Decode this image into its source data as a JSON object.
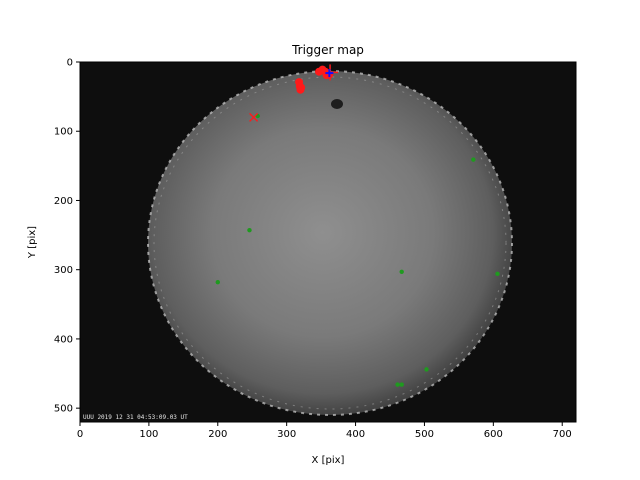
{
  "chart_data": {
    "type": "scatter",
    "title": "Trigger map",
    "xlabel": "X [pix]",
    "ylabel": "Y [pix]",
    "xlim": [
      0,
      720
    ],
    "ylim": [
      0,
      520
    ],
    "y_inverted": true,
    "xticks": [
      0,
      100,
      200,
      300,
      400,
      500,
      600,
      700
    ],
    "yticks": [
      0,
      100,
      200,
      300,
      400,
      500
    ],
    "background": "all-sky camera frame (fisheye)",
    "timestamp_overlay": "UUU 2019 12 31 04:53:09.03 UT",
    "colors": {
      "green": "#1f9a1f",
      "red": "#ff1a1a",
      "blue": "#1010ff"
    },
    "series": [
      {
        "marker": "circle",
        "color": "green",
        "points": [
          [
            258,
            78
          ],
          [
            571,
            141
          ],
          [
            246,
            243
          ],
          [
            467,
            303
          ],
          [
            200,
            318
          ],
          [
            606,
            306
          ],
          [
            503,
            444
          ],
          [
            461,
            466
          ],
          [
            467,
            466
          ]
        ]
      },
      {
        "marker": "circle",
        "color": "red",
        "points": [
          [
            318,
            29
          ],
          [
            319,
            35
          ],
          [
            320,
            40
          ],
          [
            321,
            37
          ],
          [
            347,
            14
          ],
          [
            352,
            11
          ],
          [
            356,
            14
          ],
          [
            358,
            19
          ],
          [
            362,
            18
          ]
        ]
      },
      {
        "marker": "x",
        "color": "red",
        "points": [
          [
            252,
            80
          ]
        ]
      },
      {
        "marker": "plus",
        "color": "red",
        "points": [
          [
            363,
            15
          ]
        ]
      },
      {
        "marker": "plus",
        "color": "blue",
        "points": [
          [
            362,
            16
          ]
        ]
      }
    ]
  }
}
